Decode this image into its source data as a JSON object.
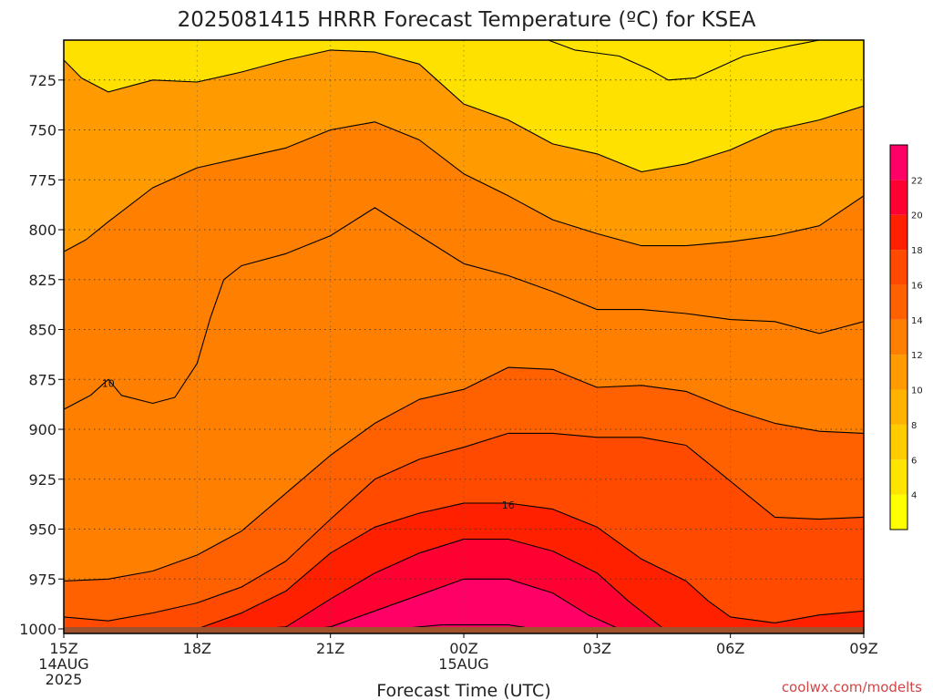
{
  "chart_data": {
    "type": "heatmap",
    "title": "2025081415 HRRR Forecast Temperature (ºC) for KSEA",
    "xlabel": "Forecast Time (UTC)",
    "credit": "coolwx.com/modelts",
    "x_ticks": [
      {
        "hour": 0,
        "lines": [
          "15Z",
          "14AUG",
          "2025"
        ]
      },
      {
        "hour": 3,
        "lines": [
          "18Z"
        ]
      },
      {
        "hour": 6,
        "lines": [
          "21Z"
        ]
      },
      {
        "hour": 9,
        "lines": [
          "00Z",
          "15AUG"
        ]
      },
      {
        "hour": 12,
        "lines": [
          "03Z"
        ]
      },
      {
        "hour": 15,
        "lines": [
          "06Z"
        ]
      },
      {
        "hour": 18,
        "lines": [
          "09Z"
        ]
      }
    ],
    "x_range_hours": [
      0,
      18
    ],
    "y_axis": {
      "scale": "pressure",
      "ticks": [
        "725",
        "750",
        "775",
        "800",
        "825",
        "850",
        "875",
        "900",
        "925",
        "950",
        "975",
        "1000"
      ],
      "range": [
        1000,
        705
      ],
      "inverted": true
    },
    "grid": true,
    "colorbar": {
      "location": "right",
      "ticks": [
        "4",
        "6",
        "8",
        "10",
        "12",
        "14",
        "16",
        "18",
        "20",
        "22"
      ],
      "levels": [
        2,
        4,
        6,
        8,
        10,
        12,
        14,
        16,
        18,
        20,
        22,
        24
      ],
      "colors": [
        "#ffff00",
        "#ffe400",
        "#ffcc00",
        "#ffb300",
        "#ff9a00",
        "#ff8000",
        "#ff6000",
        "#ff4a00",
        "#ff2000",
        "#ff0033",
        "#ff0066"
      ]
    },
    "contour_labels": [
      {
        "value": "10",
        "hour": 1.0,
        "pressure": 877
      },
      {
        "value": "16",
        "hour": 10.0,
        "pressure": 938
      }
    ],
    "contours": [
      {
        "level": 6,
        "points": [
          [
            10.9,
            705
          ],
          [
            11.5,
            710
          ],
          [
            12.5,
            713
          ],
          [
            13.2,
            720
          ],
          [
            13.6,
            725
          ],
          [
            14.2,
            724
          ],
          [
            14.7,
            719
          ],
          [
            15.3,
            713
          ],
          [
            16.3,
            708
          ],
          [
            17.0,
            705
          ]
        ]
      },
      {
        "level": 8,
        "points": [
          [
            0,
            715
          ],
          [
            0.4,
            724
          ],
          [
            1.0,
            731
          ],
          [
            2.0,
            725
          ],
          [
            3.0,
            726
          ],
          [
            4.0,
            721
          ],
          [
            5.0,
            715
          ],
          [
            6.0,
            710
          ],
          [
            7.0,
            711
          ],
          [
            8.0,
            717
          ],
          [
            9.0,
            737
          ],
          [
            10.0,
            745
          ],
          [
            11.0,
            757
          ],
          [
            12.0,
            762
          ],
          [
            13.0,
            771
          ],
          [
            14.0,
            767
          ],
          [
            15.0,
            760
          ],
          [
            16.0,
            750
          ],
          [
            17.0,
            745
          ],
          [
            18.0,
            738
          ]
        ]
      },
      {
        "level": 10,
        "points": [
          [
            0,
            811
          ],
          [
            0.5,
            805
          ],
          [
            1.0,
            796
          ],
          [
            2.0,
            779
          ],
          [
            3.0,
            769
          ],
          [
            4.0,
            764
          ],
          [
            5.0,
            759
          ],
          [
            6.0,
            750
          ],
          [
            7.0,
            746
          ],
          [
            8.0,
            755
          ],
          [
            9.0,
            772
          ],
          [
            10.0,
            783
          ],
          [
            11.0,
            795
          ],
          [
            12.0,
            802
          ],
          [
            13.0,
            808
          ],
          [
            14.0,
            808
          ],
          [
            15.0,
            806
          ],
          [
            16.0,
            803
          ],
          [
            17.0,
            798
          ],
          [
            18.0,
            783
          ]
        ]
      },
      {
        "level": 10,
        "points": [
          [
            0,
            890
          ],
          [
            0.6,
            883
          ],
          [
            1.0,
            875
          ],
          [
            1.3,
            883
          ],
          [
            2.0,
            887
          ],
          [
            2.5,
            884
          ],
          [
            3.0,
            867
          ],
          [
            3.3,
            844
          ],
          [
            3.6,
            825
          ],
          [
            4.0,
            818
          ],
          [
            5.0,
            812
          ],
          [
            6.0,
            803
          ],
          [
            7.0,
            789
          ],
          [
            8.0,
            803
          ],
          [
            9.0,
            817
          ],
          [
            10.0,
            823
          ],
          [
            11.0,
            831
          ],
          [
            12.0,
            840
          ],
          [
            13.0,
            840
          ],
          [
            14.0,
            842
          ],
          [
            15.0,
            845
          ],
          [
            16.0,
            846
          ],
          [
            17.0,
            852
          ],
          [
            18.0,
            846
          ]
        ]
      },
      {
        "level": 12,
        "points": [
          [
            0,
            976
          ],
          [
            1.0,
            975
          ],
          [
            2.0,
            971
          ],
          [
            3.0,
            963
          ],
          [
            4.0,
            951
          ],
          [
            5.0,
            932
          ],
          [
            6.0,
            913
          ],
          [
            7.0,
            897
          ],
          [
            8.0,
            885
          ],
          [
            9.0,
            880
          ],
          [
            10.0,
            869
          ],
          [
            11.0,
            870
          ],
          [
            12.0,
            879
          ],
          [
            13.0,
            878
          ],
          [
            14.0,
            881
          ],
          [
            15.0,
            890
          ],
          [
            16.0,
            897
          ],
          [
            17.0,
            901
          ],
          [
            18.0,
            902
          ]
        ]
      },
      {
        "level": 14,
        "points": [
          [
            0,
            994
          ],
          [
            1.0,
            996
          ],
          [
            2.0,
            992
          ],
          [
            3.0,
            987
          ],
          [
            4.0,
            979
          ],
          [
            5.0,
            966
          ],
          [
            6.0,
            945
          ],
          [
            7.0,
            925
          ],
          [
            8.0,
            915
          ],
          [
            9.0,
            909
          ],
          [
            10.0,
            902
          ],
          [
            11.0,
            902
          ],
          [
            12.0,
            904
          ],
          [
            13.0,
            904
          ],
          [
            14.0,
            908
          ],
          [
            15.0,
            926
          ],
          [
            16.0,
            944
          ],
          [
            17.0,
            945
          ],
          [
            18.0,
            944
          ]
        ]
      },
      {
        "level": 16,
        "points": [
          [
            3.0,
            1000
          ],
          [
            4.0,
            992
          ],
          [
            5.0,
            981
          ],
          [
            6.0,
            962
          ],
          [
            7.0,
            949
          ],
          [
            8.0,
            942
          ],
          [
            9.0,
            937
          ],
          [
            10.0,
            937
          ],
          [
            11.0,
            940
          ],
          [
            12.0,
            949
          ],
          [
            13.0,
            965
          ],
          [
            14.0,
            976
          ],
          [
            14.5,
            986
          ],
          [
            15.0,
            994
          ],
          [
            16.0,
            997
          ],
          [
            17.0,
            993
          ],
          [
            18.0,
            991
          ]
        ]
      },
      {
        "level": 18,
        "points": [
          [
            4.3,
            1000
          ],
          [
            5.0,
            999
          ],
          [
            6.0,
            985
          ],
          [
            7.0,
            972
          ],
          [
            8.0,
            962
          ],
          [
            9.0,
            955
          ],
          [
            10.0,
            955
          ],
          [
            11.0,
            961
          ],
          [
            12.0,
            972
          ],
          [
            12.7,
            986
          ],
          [
            13.5,
            1000
          ]
        ]
      },
      {
        "level": 20,
        "points": [
          [
            5.5,
            1000
          ],
          [
            6.0,
            999
          ],
          [
            7.0,
            991
          ],
          [
            8.0,
            983
          ],
          [
            9.0,
            975
          ],
          [
            10.0,
            975
          ],
          [
            11.0,
            982
          ],
          [
            11.8,
            993
          ],
          [
            12.5,
            1000
          ]
        ]
      },
      {
        "level": 22,
        "points": [
          [
            7.5,
            1000
          ],
          [
            8.5,
            998
          ],
          [
            9.0,
            998
          ],
          [
            10.0,
            998
          ],
          [
            10.6,
            1000
          ]
        ]
      }
    ]
  }
}
